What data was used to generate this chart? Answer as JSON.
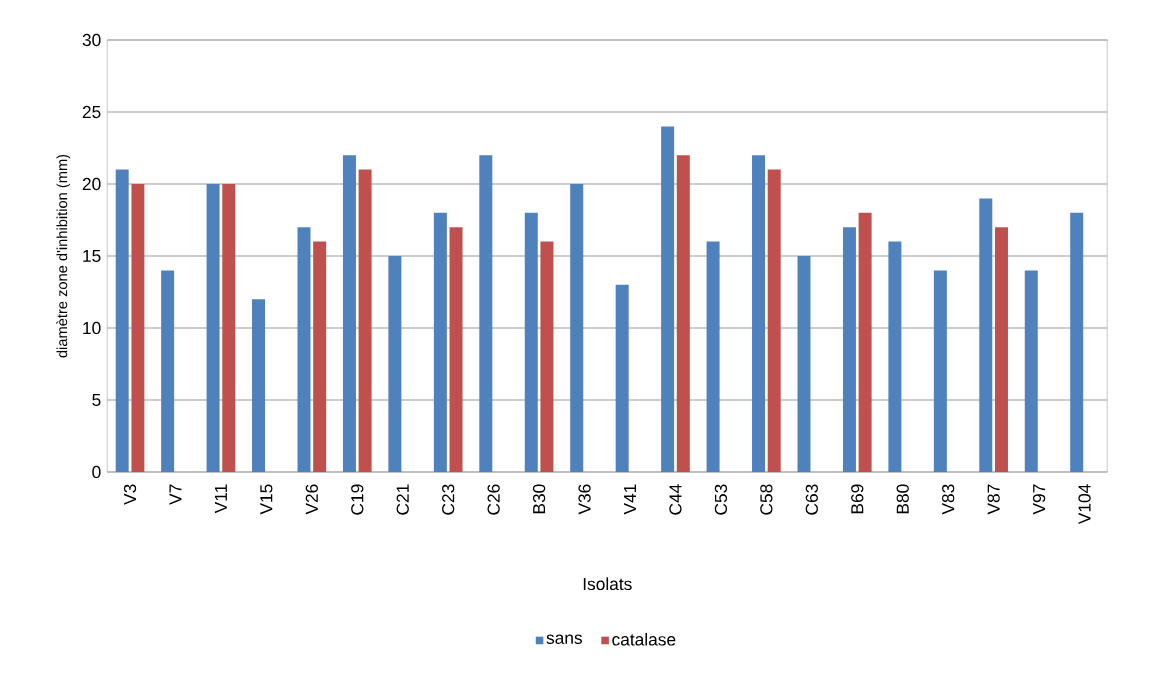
{
  "chart_data": {
    "type": "bar",
    "xlabel": "Isolats",
    "ylabel": "diamètre zone d'inhibition (mm)",
    "categories": [
      "V3",
      "V7",
      "V11",
      "V15",
      "V26",
      "C19",
      "C21",
      "C23",
      "C26",
      "B30",
      "V36",
      "V41",
      "C44",
      "C53",
      "C58",
      "C63",
      "B69",
      "B80",
      "V83",
      "V87",
      "V97",
      "V104"
    ],
    "series": [
      {
        "name": "sans",
        "color": "#4f81bd",
        "values": [
          21,
          14,
          20,
          12,
          17,
          22,
          15,
          18,
          22,
          18,
          20,
          13,
          24,
          16,
          22,
          15,
          17,
          16,
          14,
          19,
          14,
          18
        ]
      },
      {
        "name": "catalase",
        "color": "#c0504d",
        "values": [
          20,
          null,
          20,
          null,
          16,
          21,
          null,
          17,
          null,
          16,
          null,
          null,
          22,
          null,
          21,
          null,
          18,
          null,
          null,
          17,
          null,
          null
        ]
      }
    ],
    "ylim": [
      0,
      30
    ],
    "yticks": [
      0,
      5,
      10,
      15,
      20,
      25,
      30
    ],
    "grid": "y",
    "legend": "bottom"
  }
}
